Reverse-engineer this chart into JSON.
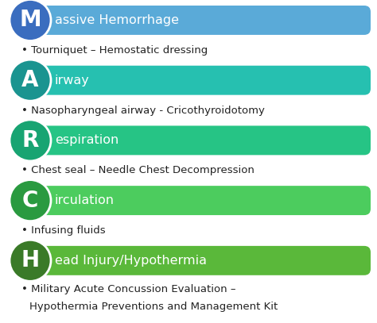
{
  "entries": [
    {
      "letter": "M",
      "letter_color": "#3a6dbf",
      "bar_color": "#5aаad8",
      "title": "assive Hemorrhage",
      "bullet": "• Tourniquet – Hemostatic dressing",
      "bullet2": null
    },
    {
      "letter": "A",
      "letter_color": "#1a9490",
      "bar_color": "#26c0b0",
      "title": "irway",
      "bullet": "• Nasopharyngeal airway - Cricothyroidotomy",
      "bullet2": null
    },
    {
      "letter": "R",
      "letter_color": "#18a472",
      "bar_color": "#26c485",
      "title": "espiration",
      "bullet": "• Chest seal – Needle Chest Decompression",
      "bullet2": null
    },
    {
      "letter": "C",
      "letter_color": "#2a9a40",
      "bar_color": "#4ccc5e",
      "title": "irculation",
      "bullet": "• Infusing fluids",
      "bullet2": null
    },
    {
      "letter": "H",
      "letter_color": "#3a7a28",
      "bar_color": "#5ab83a",
      "title": "ead Injury/Hypothermia",
      "bullet": "• Military Acute Concussion Evaluation –",
      "bullet2": "   Hypothermia Preventions and Management Kit"
    }
  ],
  "bg_color": "#ffffff",
  "title_font_size": 11.5,
  "bullet_font_size": 9.5,
  "letter_font_size": 20
}
